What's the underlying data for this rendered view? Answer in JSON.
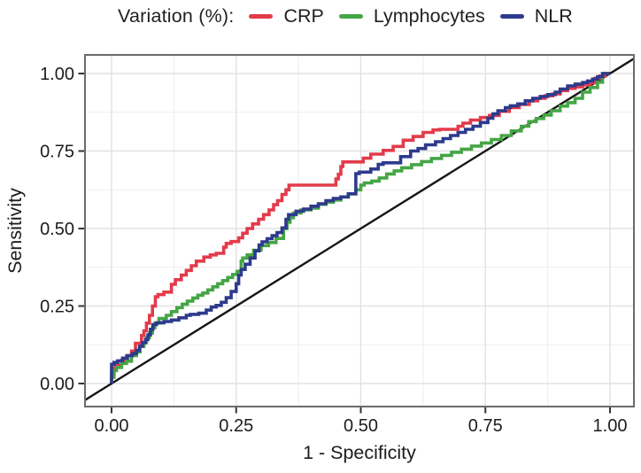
{
  "chart_data": {
    "type": "line",
    "subtype": "roc-step-curves",
    "title": "Variation (%):",
    "xlabel": "1 - Specificity",
    "ylabel": "Sensitivity",
    "xlim": [
      0,
      1
    ],
    "ylim": [
      0,
      1
    ],
    "grid": true,
    "legend_position": "top",
    "x_ticks": [
      0,
      0.25,
      0.5,
      0.75,
      1
    ],
    "y_ticks": [
      0,
      0.25,
      0.5,
      0.75,
      1
    ],
    "x_tick_labels": [
      "0.00",
      "0.25",
      "0.50",
      "0.75",
      "1.00"
    ],
    "y_tick_labels": [
      "0.00",
      "0.25",
      "0.50",
      "0.75",
      "1.00"
    ],
    "minor_ticks": [
      0.125,
      0.375,
      0.625,
      0.875
    ],
    "colors": {
      "grid_major": "#e2e2e2",
      "grid_minor": "#f0f0f0",
      "panel_border": "#6b6b6b",
      "tick": "#333333",
      "text": "#1c1c1c",
      "reference_line": "#161616"
    },
    "reference_line": {
      "type": "diagonal",
      "from": [
        0,
        0
      ],
      "to": [
        1,
        1
      ]
    },
    "series": [
      {
        "name": "CRP",
        "color": "#e23b4a",
        "points": [
          [
            0,
            0
          ],
          [
            0.005,
            0.03
          ],
          [
            0.008,
            0.05
          ],
          [
            0.02,
            0.06
          ],
          [
            0.03,
            0.075
          ],
          [
            0.04,
            0.09
          ],
          [
            0.048,
            0.105
          ],
          [
            0.06,
            0.13
          ],
          [
            0.065,
            0.155
          ],
          [
            0.07,
            0.17
          ],
          [
            0.076,
            0.195
          ],
          [
            0.082,
            0.22
          ],
          [
            0.088,
            0.25
          ],
          [
            0.093,
            0.28
          ],
          [
            0.105,
            0.287
          ],
          [
            0.12,
            0.295
          ],
          [
            0.128,
            0.32
          ],
          [
            0.14,
            0.335
          ],
          [
            0.15,
            0.35
          ],
          [
            0.16,
            0.365
          ],
          [
            0.17,
            0.38
          ],
          [
            0.185,
            0.395
          ],
          [
            0.198,
            0.408
          ],
          [
            0.21,
            0.415
          ],
          [
            0.225,
            0.42
          ],
          [
            0.23,
            0.44
          ],
          [
            0.24,
            0.452
          ],
          [
            0.255,
            0.458
          ],
          [
            0.263,
            0.47
          ],
          [
            0.272,
            0.485
          ],
          [
            0.283,
            0.5
          ],
          [
            0.295,
            0.515
          ],
          [
            0.305,
            0.53
          ],
          [
            0.316,
            0.545
          ],
          [
            0.325,
            0.56
          ],
          [
            0.333,
            0.577
          ],
          [
            0.342,
            0.59
          ],
          [
            0.35,
            0.61
          ],
          [
            0.356,
            0.625
          ],
          [
            0.362,
            0.64
          ],
          [
            0.45,
            0.64
          ],
          [
            0.455,
            0.66
          ],
          [
            0.46,
            0.675
          ],
          [
            0.464,
            0.7
          ],
          [
            0.468,
            0.715
          ],
          [
            0.505,
            0.715
          ],
          [
            0.52,
            0.727
          ],
          [
            0.545,
            0.74
          ],
          [
            0.565,
            0.752
          ],
          [
            0.585,
            0.765
          ],
          [
            0.605,
            0.785
          ],
          [
            0.625,
            0.797
          ],
          [
            0.645,
            0.81
          ],
          [
            0.658,
            0.818
          ],
          [
            0.695,
            0.82
          ],
          [
            0.705,
            0.83
          ],
          [
            0.72,
            0.84
          ],
          [
            0.74,
            0.85
          ],
          [
            0.758,
            0.858
          ],
          [
            0.778,
            0.865
          ],
          [
            0.798,
            0.878
          ],
          [
            0.818,
            0.89
          ],
          [
            0.838,
            0.9
          ],
          [
            0.855,
            0.912
          ],
          [
            0.87,
            0.92
          ],
          [
            0.885,
            0.928
          ],
          [
            0.9,
            0.934
          ],
          [
            0.915,
            0.945
          ],
          [
            0.93,
            0.952
          ],
          [
            0.945,
            0.957
          ],
          [
            0.96,
            0.963
          ],
          [
            0.97,
            0.97
          ],
          [
            0.98,
            0.985
          ],
          [
            0.99,
            0.992
          ],
          [
            1,
            1
          ]
        ]
      },
      {
        "name": "Lymphocytes",
        "color": "#45a545",
        "points": [
          [
            0,
            0
          ],
          [
            0.005,
            0.02
          ],
          [
            0.01,
            0.042
          ],
          [
            0.02,
            0.052
          ],
          [
            0.03,
            0.065
          ],
          [
            0.04,
            0.072
          ],
          [
            0.05,
            0.09
          ],
          [
            0.057,
            0.102
          ],
          [
            0.065,
            0.12
          ],
          [
            0.07,
            0.132
          ],
          [
            0.076,
            0.148
          ],
          [
            0.082,
            0.163
          ],
          [
            0.087,
            0.18
          ],
          [
            0.095,
            0.195
          ],
          [
            0.11,
            0.21
          ],
          [
            0.12,
            0.22
          ],
          [
            0.131,
            0.232
          ],
          [
            0.142,
            0.245
          ],
          [
            0.152,
            0.256
          ],
          [
            0.163,
            0.266
          ],
          [
            0.173,
            0.276
          ],
          [
            0.183,
            0.285
          ],
          [
            0.193,
            0.292
          ],
          [
            0.203,
            0.302
          ],
          [
            0.213,
            0.312
          ],
          [
            0.223,
            0.322
          ],
          [
            0.233,
            0.332
          ],
          [
            0.243,
            0.342
          ],
          [
            0.252,
            0.352
          ],
          [
            0.26,
            0.362
          ],
          [
            0.263,
            0.395
          ],
          [
            0.272,
            0.405
          ],
          [
            0.285,
            0.415
          ],
          [
            0.3,
            0.43
          ],
          [
            0.315,
            0.445
          ],
          [
            0.33,
            0.455
          ],
          [
            0.345,
            0.468
          ],
          [
            0.352,
            0.5
          ],
          [
            0.358,
            0.52
          ],
          [
            0.365,
            0.535
          ],
          [
            0.38,
            0.55
          ],
          [
            0.4,
            0.56
          ],
          [
            0.415,
            0.566
          ],
          [
            0.43,
            0.578
          ],
          [
            0.445,
            0.585
          ],
          [
            0.46,
            0.592
          ],
          [
            0.475,
            0.602
          ],
          [
            0.49,
            0.612
          ],
          [
            0.5,
            0.625
          ],
          [
            0.507,
            0.64
          ],
          [
            0.522,
            0.647
          ],
          [
            0.537,
            0.653
          ],
          [
            0.552,
            0.663
          ],
          [
            0.567,
            0.676
          ],
          [
            0.582,
            0.686
          ],
          [
            0.602,
            0.696
          ],
          [
            0.622,
            0.706
          ],
          [
            0.642,
            0.716
          ],
          [
            0.662,
            0.726
          ],
          [
            0.682,
            0.736
          ],
          [
            0.702,
            0.746
          ],
          [
            0.722,
            0.756
          ],
          [
            0.742,
            0.766
          ],
          [
            0.762,
            0.776
          ],
          [
            0.782,
            0.787
          ],
          [
            0.802,
            0.8
          ],
          [
            0.822,
            0.815
          ],
          [
            0.837,
            0.83
          ],
          [
            0.852,
            0.845
          ],
          [
            0.867,
            0.855
          ],
          [
            0.882,
            0.866
          ],
          [
            0.9,
            0.88
          ],
          [
            0.915,
            0.895
          ],
          [
            0.93,
            0.906
          ],
          [
            0.945,
            0.92
          ],
          [
            0.96,
            0.94
          ],
          [
            0.975,
            0.955
          ],
          [
            0.985,
            0.972
          ],
          [
            1,
            1
          ]
        ]
      },
      {
        "name": "NLR",
        "color": "#2d3a8c",
        "points": [
          [
            0,
            0
          ],
          [
            0.005,
            0.062
          ],
          [
            0.012,
            0.068
          ],
          [
            0.022,
            0.073
          ],
          [
            0.032,
            0.082
          ],
          [
            0.042,
            0.09
          ],
          [
            0.05,
            0.097
          ],
          [
            0.056,
            0.107
          ],
          [
            0.062,
            0.12
          ],
          [
            0.068,
            0.132
          ],
          [
            0.073,
            0.142
          ],
          [
            0.078,
            0.157
          ],
          [
            0.083,
            0.175
          ],
          [
            0.09,
            0.19
          ],
          [
            0.105,
            0.196
          ],
          [
            0.12,
            0.2
          ],
          [
            0.135,
            0.205
          ],
          [
            0.15,
            0.212
          ],
          [
            0.158,
            0.22
          ],
          [
            0.175,
            0.223
          ],
          [
            0.19,
            0.227
          ],
          [
            0.2,
            0.237
          ],
          [
            0.21,
            0.247
          ],
          [
            0.22,
            0.252
          ],
          [
            0.23,
            0.262
          ],
          [
            0.24,
            0.277
          ],
          [
            0.25,
            0.297
          ],
          [
            0.255,
            0.322
          ],
          [
            0.26,
            0.35
          ],
          [
            0.268,
            0.368
          ],
          [
            0.278,
            0.385
          ],
          [
            0.288,
            0.405
          ],
          [
            0.296,
            0.428
          ],
          [
            0.302,
            0.447
          ],
          [
            0.312,
            0.457
          ],
          [
            0.322,
            0.467
          ],
          [
            0.332,
            0.477
          ],
          [
            0.342,
            0.487
          ],
          [
            0.35,
            0.502
          ],
          [
            0.355,
            0.53
          ],
          [
            0.37,
            0.545
          ],
          [
            0.385,
            0.556
          ],
          [
            0.4,
            0.563
          ],
          [
            0.415,
            0.572
          ],
          [
            0.43,
            0.58
          ],
          [
            0.445,
            0.59
          ],
          [
            0.46,
            0.597
          ],
          [
            0.475,
            0.602
          ],
          [
            0.49,
            0.612
          ],
          [
            0.497,
            0.677
          ],
          [
            0.52,
            0.682
          ],
          [
            0.535,
            0.692
          ],
          [
            0.545,
            0.707
          ],
          [
            0.58,
            0.712
          ],
          [
            0.6,
            0.732
          ],
          [
            0.615,
            0.75
          ],
          [
            0.63,
            0.758
          ],
          [
            0.65,
            0.77
          ],
          [
            0.665,
            0.78
          ],
          [
            0.68,
            0.79
          ],
          [
            0.695,
            0.8
          ],
          [
            0.71,
            0.81
          ],
          [
            0.725,
            0.82
          ],
          [
            0.74,
            0.83
          ],
          [
            0.755,
            0.842
          ],
          [
            0.765,
            0.856
          ],
          [
            0.775,
            0.87
          ],
          [
            0.79,
            0.88
          ],
          [
            0.8,
            0.89
          ],
          [
            0.815,
            0.896
          ],
          [
            0.83,
            0.902
          ],
          [
            0.845,
            0.912
          ],
          [
            0.86,
            0.92
          ],
          [
            0.875,
            0.926
          ],
          [
            0.89,
            0.932
          ],
          [
            0.9,
            0.94
          ],
          [
            0.915,
            0.95
          ],
          [
            0.93,
            0.96
          ],
          [
            0.945,
            0.966
          ],
          [
            0.955,
            0.971
          ],
          [
            0.965,
            0.976
          ],
          [
            0.975,
            0.982
          ],
          [
            0.985,
            0.99
          ],
          [
            1,
            1
          ]
        ]
      }
    ]
  }
}
